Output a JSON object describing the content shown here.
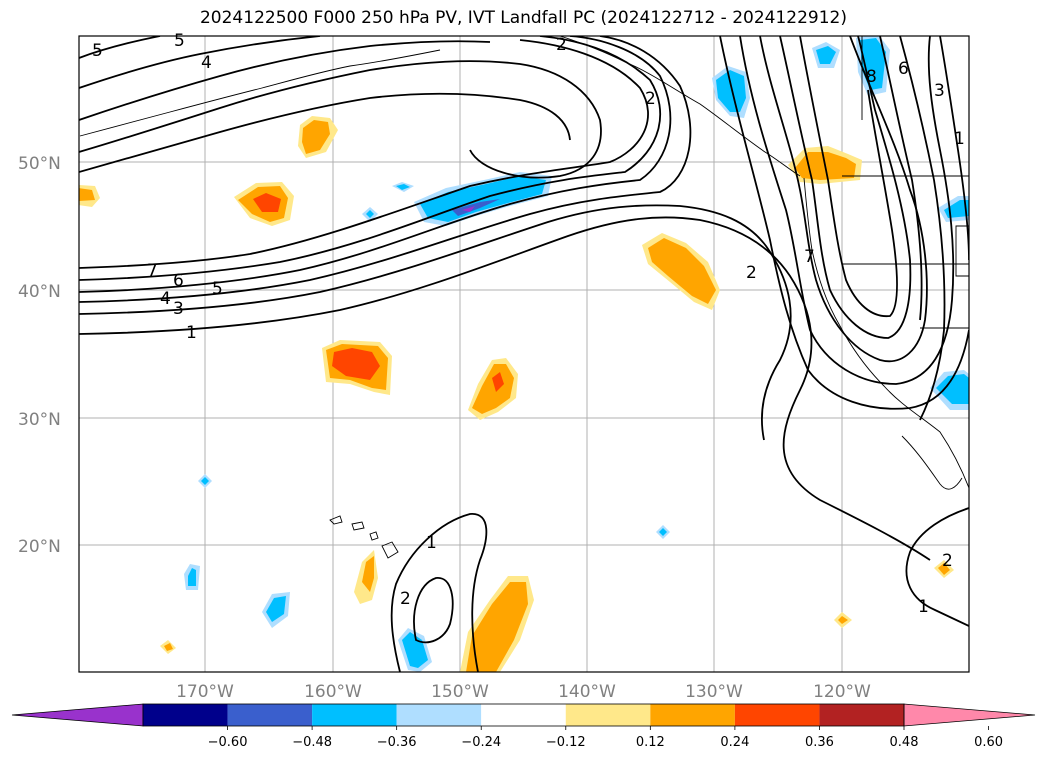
{
  "title": "2024122500 F000 250 hPa PV, IVT Landfall PC (2024122712 - 2024122912)",
  "map": {
    "lat_labels": [
      "50°N",
      "40°N",
      "30°N",
      "20°N"
    ],
    "lon_labels": [
      "170°W",
      "160°W",
      "150°W",
      "140°W",
      "130°W",
      "120°W"
    ],
    "contour_labels": [
      {
        "id": "c5a",
        "text": "5"
      },
      {
        "id": "c5b",
        "text": "5"
      },
      {
        "id": "c4a",
        "text": "4"
      },
      {
        "id": "c2a",
        "text": "2"
      },
      {
        "id": "c2b",
        "text": "2"
      },
      {
        "id": "c7",
        "text": "7"
      },
      {
        "id": "c6",
        "text": "6"
      },
      {
        "id": "c5c",
        "text": "5"
      },
      {
        "id": "c4b",
        "text": "4"
      },
      {
        "id": "c3",
        "text": "3"
      },
      {
        "id": "c1a",
        "text": "1"
      },
      {
        "id": "c2c",
        "text": "2"
      },
      {
        "id": "c7b",
        "text": "7"
      },
      {
        "id": "c8",
        "text": "8"
      },
      {
        "id": "c6b",
        "text": "6"
      },
      {
        "id": "c3b",
        "text": "3"
      },
      {
        "id": "c1b",
        "text": "1"
      },
      {
        "id": "c1c",
        "text": "1"
      },
      {
        "id": "c2d",
        "text": "2"
      },
      {
        "id": "c2e",
        "text": "2"
      },
      {
        "id": "c1d",
        "text": "1"
      }
    ]
  },
  "colorbar": {
    "colors": [
      "#9932cc",
      "#00008b",
      "#3a5fcd",
      "#00bfff",
      "#afdeff",
      "#ffffff",
      "#ffe88a",
      "#ffa500",
      "#ff4500",
      "#b22222",
      "#ff88aa"
    ],
    "tick_labels": [
      "−0.60",
      "−0.48",
      "−0.36",
      "−0.24",
      "−0.12",
      "0.12",
      "0.24",
      "0.36",
      "0.48",
      "0.60"
    ]
  }
}
